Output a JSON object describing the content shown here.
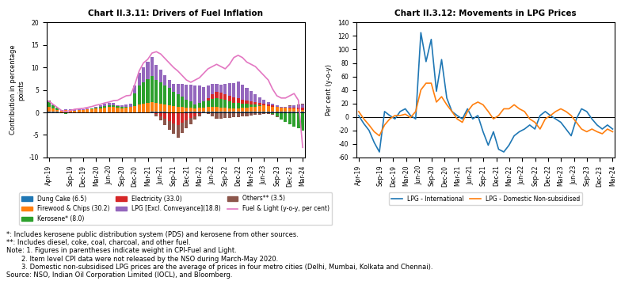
{
  "chart_data": [
    {
      "type": "bar",
      "stacked": true,
      "title": "Chart II.3.11: Drivers of Fuel Inflation",
      "ylabel": "Contribution in percentage\npoints",
      "categories": [
        "Apr-19",
        null,
        null,
        null,
        null,
        "Sep-19",
        null,
        null,
        "Dec-19",
        null,
        null,
        "Mar-20",
        null,
        null,
        "Jun-20",
        null,
        null,
        "Sep-20",
        null,
        null,
        "Dec-20",
        null,
        null,
        "Mar-21",
        null,
        null,
        "Jun-21",
        null,
        null,
        "Sep-21",
        null,
        null,
        "Dec-21",
        null,
        null,
        "Mar-22",
        null,
        null,
        "Jun-22",
        null,
        null,
        "Sep-22",
        null,
        null,
        "Dec-22",
        null,
        null,
        "Mar-23",
        null,
        null,
        "Jun-23",
        null,
        null,
        "Sep-23",
        null,
        null,
        "Dec-23",
        null,
        null,
        "Mar-24"
      ],
      "series": [
        {
          "name": "Dung Cake (6.5)",
          "values": [
            0.15,
            0.12,
            0.1,
            0.08,
            0.05,
            0.05,
            0.05,
            0.05,
            0.05,
            0.05,
            0.05,
            0.05,
            0.05,
            0.05,
            0.05,
            0.05,
            0.05,
            0.05,
            0.05,
            0.05,
            0.05,
            0.05,
            0.05,
            0.08,
            0.1,
            0.1,
            0.1,
            0.1,
            0.08,
            0.08,
            0.08,
            0.08,
            0.1,
            0.1,
            0.1,
            0.1,
            0.1,
            0.1,
            0.1,
            0.1,
            0.1,
            0.1,
            0.1,
            0.1,
            0.1,
            0.1,
            0.1,
            0.1,
            0.1,
            0.1,
            0.1,
            0.1,
            0.1,
            0.1,
            0.1,
            0.1,
            0.1,
            0.1,
            0.1,
            0.1
          ]
        },
        {
          "name": "Firewood & Chips (30.2)",
          "values": [
            1.0,
            0.8,
            0.5,
            0.3,
            0.5,
            0.4,
            0.3,
            0.4,
            0.5,
            0.6,
            0.7,
            0.8,
            0.9,
            1.0,
            1.1,
            1.2,
            1.0,
            0.9,
            1.0,
            1.1,
            1.4,
            1.7,
            1.9,
            2.1,
            2.2,
            2.0,
            1.8,
            1.6,
            1.5,
            1.3,
            1.2,
            1.1,
            1.0,
            0.9,
            0.8,
            0.9,
            1.0,
            1.1,
            1.2,
            1.1,
            1.0,
            0.9,
            0.8,
            0.7,
            0.8,
            0.9,
            1.0,
            1.1,
            1.2,
            1.3,
            1.4,
            1.3,
            1.2,
            1.1,
            1.0,
            0.9,
            0.8,
            0.7,
            0.6,
            0.5
          ]
        },
        {
          "name": "Kerosene* (8.0)",
          "values": [
            1.1,
            0.7,
            0.4,
            0.0,
            -0.4,
            -0.2,
            0.0,
            0.0,
            0.0,
            0.1,
            0.1,
            0.2,
            0.3,
            0.4,
            0.5,
            0.4,
            0.3,
            0.3,
            0.2,
            0.1,
            2.8,
            4.2,
            4.8,
            5.2,
            5.8,
            5.2,
            4.8,
            4.2,
            3.8,
            3.2,
            2.8,
            2.3,
            1.8,
            1.4,
            0.9,
            1.1,
            1.3,
            1.5,
            1.7,
            1.9,
            1.9,
            1.8,
            1.6,
            1.4,
            1.2,
            1.0,
            0.8,
            0.6,
            0.4,
            0.2,
            0.1,
            0.0,
            -0.3,
            -0.9,
            -1.6,
            -2.1,
            -2.6,
            -3.1,
            -3.6,
            -4.1
          ]
        },
        {
          "name": "Electricity (33.0)",
          "values": [
            0.0,
            0.0,
            0.0,
            0.0,
            0.0,
            0.0,
            0.0,
            0.0,
            0.0,
            0.0,
            0.0,
            0.0,
            0.0,
            0.0,
            0.0,
            0.0,
            0.0,
            0.0,
            0.0,
            0.0,
            0.0,
            0.0,
            0.0,
            0.0,
            0.0,
            -0.4,
            -0.9,
            -1.4,
            -1.9,
            -2.4,
            -2.8,
            -2.3,
            -1.8,
            -1.3,
            -0.8,
            -0.4,
            0.0,
            0.5,
            1.0,
            1.4,
            1.4,
            1.3,
            1.2,
            1.1,
            1.0,
            0.9,
            0.8,
            0.7,
            0.6,
            0.5,
            0.4,
            0.3,
            0.2,
            0.1,
            0.0,
            0.1,
            0.2,
            0.3,
            0.4,
            0.5
          ]
        },
        {
          "name": "LPG [Excl. Conveyance](18.8)",
          "values": [
            0.3,
            0.2,
            0.1,
            0.1,
            0.1,
            0.2,
            0.3,
            0.2,
            0.1,
            0.1,
            0.1,
            0.2,
            0.3,
            0.4,
            0.5,
            0.4,
            0.3,
            0.4,
            0.5,
            0.6,
            1.8,
            2.8,
            3.3,
            3.8,
            4.2,
            3.3,
            2.8,
            2.3,
            1.8,
            1.8,
            2.3,
            2.8,
            3.3,
            3.8,
            4.2,
            3.8,
            3.3,
            2.8,
            2.3,
            1.8,
            1.8,
            2.3,
            2.8,
            3.3,
            3.8,
            3.3,
            2.8,
            2.3,
            1.8,
            1.3,
            0.8,
            0.6,
            0.4,
            0.2,
            0.1,
            0.2,
            0.3,
            0.4,
            0.5,
            0.6
          ]
        },
        {
          "name": "Others** (3.5)",
          "values": [
            0.1,
            0.0,
            0.0,
            0.0,
            0.0,
            0.0,
            0.0,
            0.0,
            0.0,
            0.0,
            0.0,
            0.0,
            0.0,
            0.0,
            0.0,
            0.0,
            0.0,
            0.0,
            0.0,
            0.0,
            0.0,
            0.0,
            0.0,
            0.0,
            0.0,
            -0.4,
            -0.9,
            -1.4,
            -1.9,
            -2.4,
            -2.8,
            -2.3,
            -1.8,
            -1.3,
            -0.8,
            -0.4,
            0.0,
            -0.4,
            -0.9,
            -1.4,
            -1.4,
            -1.3,
            -1.2,
            -1.1,
            -1.0,
            -0.9,
            -0.8,
            -0.7,
            -0.6,
            -0.5,
            -0.4,
            -0.3,
            -0.2,
            -0.1,
            0.0,
            0.0,
            0.1,
            0.1,
            0.2,
            0.3
          ]
        },
        {
          "name": "Fuel & Light (y-o-y, per cent)",
          "type": "line",
          "values": [
            2.5,
            1.8,
            1.1,
            0.4,
            0.2,
            0.4,
            0.7,
            0.8,
            0.9,
            1.1,
            1.3,
            1.6,
            1.8,
            2.1,
            2.3,
            2.6,
            2.7,
            3.2,
            3.7,
            3.8,
            6.2,
            9.2,
            11.0,
            11.8,
            13.2,
            13.5,
            13.0,
            12.0,
            11.0,
            10.0,
            9.2,
            8.2,
            7.2,
            6.7,
            7.2,
            7.7,
            8.7,
            9.7,
            10.2,
            10.7,
            10.2,
            9.7,
            10.7,
            12.2,
            12.7,
            12.2,
            11.2,
            10.7,
            10.2,
            9.2,
            8.2,
            7.2,
            5.2,
            3.7,
            3.2,
            3.2,
            3.7,
            4.2,
            2.7,
            -7.8
          ]
        }
      ],
      "ylim": [
        -10,
        20
      ],
      "yticks": [
        -10,
        -5,
        0,
        5,
        10,
        15,
        20
      ],
      "legend": "bottom"
    },
    {
      "type": "line",
      "title": "Chart II.3.12: Movements in LPG Prices",
      "ylabel": "Per cent (y-o-y)",
      "x": [
        0,
        1.2041,
        2.4082,
        3.6122,
        4.8163,
        6.0204,
        7.2245,
        8.4286,
        9.6327,
        10.8367,
        12.0408,
        13.2449,
        14.449,
        15.6531,
        16.8571,
        18.0612,
        19.2653,
        20.4694,
        21.6735,
        22.8776,
        24.0816,
        25.2857,
        26.4898,
        27.6939,
        28.898,
        30.102,
        31.3061,
        32.5102,
        33.7143,
        34.9184,
        36.1224,
        37.3265,
        38.5306,
        39.7347,
        40.9388,
        42.1429,
        43.3469,
        44.551,
        45.7551,
        46.9592,
        48.1633,
        49.3673,
        50.5714,
        51.7755,
        52.9796,
        54.1837,
        55.3878,
        56.5918,
        57.7959,
        59
      ],
      "xlim": [
        -0.5,
        59.5
      ],
      "xticks": [
        {
          "value": 0,
          "label": "Apr-19"
        },
        {
          "value": 5,
          "label": "Sep-19"
        },
        {
          "value": 8,
          "label": "Dec-19"
        },
        {
          "value": 11,
          "label": "Mar-20"
        },
        {
          "value": 14,
          "label": "Jun-20"
        },
        {
          "value": 17,
          "label": "Sep-20"
        },
        {
          "value": 20,
          "label": "Dec-20"
        },
        {
          "value": 23,
          "label": "Mar-21"
        },
        {
          "value": 26,
          "label": "Jun-21"
        },
        {
          "value": 29,
          "label": "Sep-21"
        },
        {
          "value": 32,
          "label": "Dec-21"
        },
        {
          "value": 35,
          "label": "Mar-22"
        },
        {
          "value": 38,
          "label": "Jun-22"
        },
        {
          "value": 41,
          "label": "Sep-22"
        },
        {
          "value": 44,
          "label": "Dec-22"
        },
        {
          "value": 47,
          "label": "Mar-23"
        },
        {
          "value": 50,
          "label": "Jun-23"
        },
        {
          "value": 53,
          "label": "Sep-23"
        },
        {
          "value": 56,
          "label": "Dec-23"
        },
        {
          "value": 59,
          "label": "Mar-24"
        }
      ],
      "series": [
        {
          "name": "LPG - International",
          "values": [
            2,
            -10,
            -20,
            -38,
            -52,
            8,
            2,
            -3,
            8,
            12,
            2,
            -3,
            125,
            82,
            115,
            38,
            85,
            28,
            8,
            2,
            -3,
            12,
            -3,
            2,
            -22,
            -42,
            -22,
            -48,
            -52,
            -42,
            -28,
            -22,
            -18,
            -12,
            -18,
            2,
            8,
            2,
            -3,
            -8,
            -18,
            -28,
            -3,
            12,
            8,
            -3,
            -12,
            -18,
            -12,
            -18
          ]
        },
        {
          "name": "LPG - Domestic Non-subsidised",
          "values": [
            8,
            -3,
            -12,
            -22,
            -28,
            -12,
            -3,
            2,
            2,
            4,
            -1,
            8,
            40,
            50,
            50,
            22,
            30,
            18,
            8,
            -3,
            -8,
            8,
            18,
            22,
            18,
            8,
            -3,
            2,
            12,
            12,
            18,
            12,
            8,
            -3,
            -8,
            -18,
            -3,
            2,
            8,
            12,
            8,
            2,
            -8,
            -18,
            -22,
            -18,
            -22,
            -25,
            -18,
            -22
          ]
        }
      ],
      "ylim": [
        -60,
        140
      ],
      "yticks": [
        -60,
        -40,
        -20,
        0,
        20,
        40,
        60,
        80,
        100,
        120,
        140
      ],
      "legend": "bottom"
    }
  ],
  "annotations": [
    "*: Includes kerosene public distribution system (PDS) and kerosene from other sources.",
    "**: Includes diesel, coke, coal, charcoal, and other fuel.",
    "Note: 1. Figures in parentheses indicate weight in CPI-Fuel and Light.",
    "2. Item level CPI data were not released by the NSO during March-May 2020.",
    "3. Domestic non-subsidised LPG prices are the average of prices in four metro cities (Delhi, Mumbai, Kolkata and Chennai).",
    "Source: NSO, Indian Oil Corporation Limited (IOCL), and Bloomberg."
  ]
}
